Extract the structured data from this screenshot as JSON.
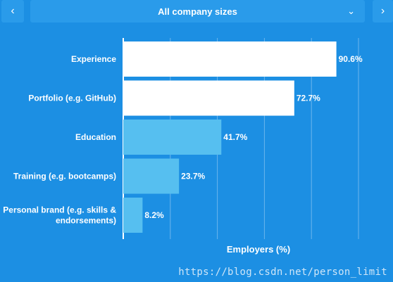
{
  "header": {
    "prev_icon": "chevron-left-icon",
    "next_icon": "chevron-right-icon",
    "filter_label": "All company sizes",
    "filter_icon": "chevron-down-icon"
  },
  "chart_data": {
    "type": "bar",
    "orientation": "horizontal",
    "categories": [
      "Experience",
      "Portfolio (e.g. GitHub)",
      "Education",
      "Training (e.g. bootcamps)",
      "Personal brand (e.g. skills & endorsements)"
    ],
    "category_lines": [
      [
        "Experience"
      ],
      [
        "Portfolio (e.g. GitHub)"
      ],
      [
        "Education"
      ],
      [
        "Training (e.g. bootcamps)"
      ],
      [
        "Personal brand (e.g. skills &",
        "endorsements)"
      ]
    ],
    "values": [
      90.6,
      72.7,
      41.7,
      23.7,
      8.2
    ],
    "value_labels": [
      "90.6%",
      "72.7%",
      "41.7%",
      "23.7%",
      "8.2%"
    ],
    "bar_colors": [
      "#ffffff",
      "#ffffff",
      "#56bff0",
      "#56bff0",
      "#56bff0"
    ],
    "xlabel": "Employers (%)",
    "xlim": [
      0,
      100
    ],
    "grid": true
  },
  "watermark": "https://blog.csdn.net/person_limit"
}
